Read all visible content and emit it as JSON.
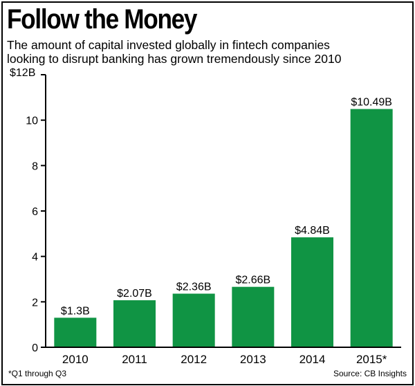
{
  "title": "Follow the Money",
  "subtitle_lines": [
    "The amount of capital invested globally in fintech companies",
    "looking to disrupt banking has grown tremendously since 2010"
  ],
  "footnote": "*Q1 through Q3",
  "source": "Source: CB Insights",
  "colors": {
    "bar": "#109444",
    "axis": "#000000",
    "text": "#000000"
  },
  "chart_data": {
    "type": "bar",
    "categories": [
      "2010",
      "2011",
      "2012",
      "2013",
      "2014",
      "2015*"
    ],
    "values": [
      1.3,
      2.07,
      2.36,
      2.66,
      4.84,
      10.49
    ],
    "data_labels": [
      "$1.3B",
      "$2.07B",
      "$2.36B",
      "$2.66B",
      "$4.84B",
      "$10.49B"
    ],
    "y_ticks": [
      0,
      2,
      4,
      6,
      8,
      10,
      12
    ],
    "y_tick_labels": [
      "0",
      "2",
      "4",
      "6",
      "8",
      "10",
      "$12B"
    ],
    "ylim": [
      0,
      12
    ],
    "grid": false,
    "xlabel": "",
    "ylabel": ""
  }
}
